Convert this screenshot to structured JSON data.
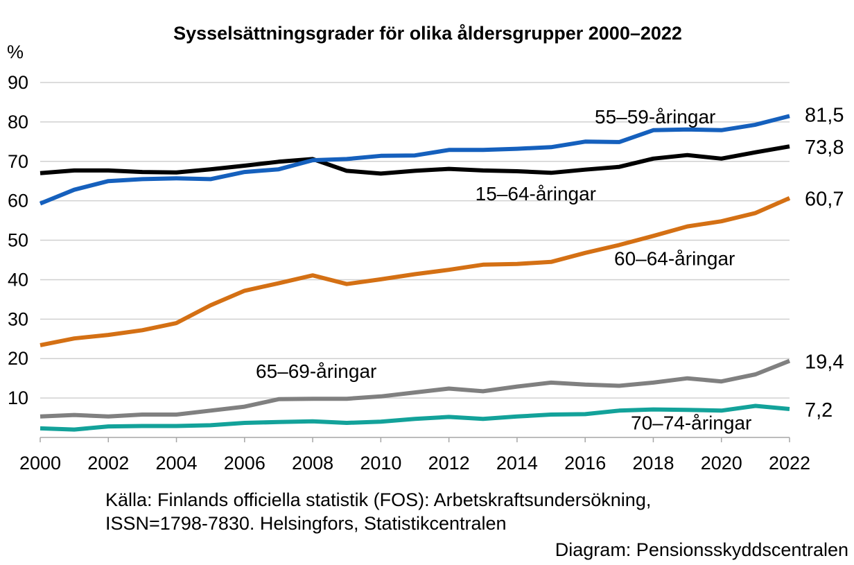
{
  "chart_data": {
    "type": "line",
    "title": "Sysselsättningsgrader för olika åldersgrupper 2000–2022",
    "ylabel": "%",
    "xlabel": "",
    "ylim": [
      0,
      90
    ],
    "xlim": [
      2000,
      2022
    ],
    "yticks": [
      "10",
      "20",
      "30",
      "40",
      "50",
      "60",
      "70",
      "80",
      "90"
    ],
    "xticks": [
      "2000",
      "2002",
      "2004",
      "2006",
      "2008",
      "2010",
      "2012",
      "2014",
      "2016",
      "2018",
      "2020",
      "2022"
    ],
    "grid": true,
    "legend": "inline labels",
    "x": [
      2000,
      2001,
      2002,
      2003,
      2004,
      2005,
      2006,
      2007,
      2008,
      2009,
      2010,
      2011,
      2012,
      2013,
      2014,
      2015,
      2016,
      2017,
      2018,
      2019,
      2020,
      2021,
      2022
    ],
    "series": [
      {
        "name": "15–64-åringar",
        "color": "#000000",
        "end_label": "73,8",
        "values": [
          67.0,
          67.7,
          67.7,
          67.3,
          67.2,
          68.0,
          68.9,
          69.9,
          70.6,
          67.6,
          66.9,
          67.6,
          68.1,
          67.7,
          67.5,
          67.1,
          67.9,
          68.6,
          70.7,
          71.6,
          70.7,
          72.3,
          73.8
        ]
      },
      {
        "name": "55–59-åringar",
        "color": "#1560bd",
        "end_label": "81,5",
        "values": [
          59.3,
          62.8,
          65.0,
          65.5,
          65.7,
          65.5,
          67.3,
          68.0,
          70.3,
          70.6,
          71.4,
          71.5,
          72.9,
          72.9,
          73.2,
          73.6,
          75.0,
          74.9,
          77.9,
          78.1,
          77.9,
          79.3,
          81.5
        ]
      },
      {
        "name": "60–64-åringar",
        "color": "#d47014",
        "end_label": "60,7",
        "values": [
          23.4,
          25.1,
          26.0,
          27.2,
          29.0,
          33.5,
          37.2,
          39.1,
          41.1,
          38.9,
          40.1,
          41.4,
          42.5,
          43.8,
          44.0,
          44.5,
          46.8,
          48.8,
          51.1,
          53.5,
          54.8,
          56.9,
          60.7
        ]
      },
      {
        "name": "65–69-åringar",
        "color": "#808080",
        "end_label": "19,4",
        "values": [
          5.3,
          5.7,
          5.3,
          5.8,
          5.8,
          6.8,
          7.8,
          9.7,
          9.8,
          9.8,
          10.4,
          11.4,
          12.4,
          11.7,
          12.9,
          13.9,
          13.4,
          13.1,
          13.9,
          15.0,
          14.2,
          16.0,
          19.4
        ]
      },
      {
        "name": "70–74-åringar",
        "color": "#13a29a",
        "end_label": "7,2",
        "values": [
          2.3,
          2.0,
          2.8,
          2.9,
          2.9,
          3.1,
          3.7,
          3.9,
          4.1,
          3.7,
          4.0,
          4.7,
          5.2,
          4.7,
          5.3,
          5.8,
          5.9,
          6.8,
          7.1,
          7.0,
          6.8,
          8.0,
          7.2
        ]
      }
    ]
  },
  "source": {
    "line1": "Källa: Finlands officiella statistik (FOS): Arbetskraftsundersökning,",
    "line2": "ISSN=1798-7830. Helsingfors, Statistikcentralen",
    "line3": "Diagram: Pensionsskyddscentralen"
  }
}
